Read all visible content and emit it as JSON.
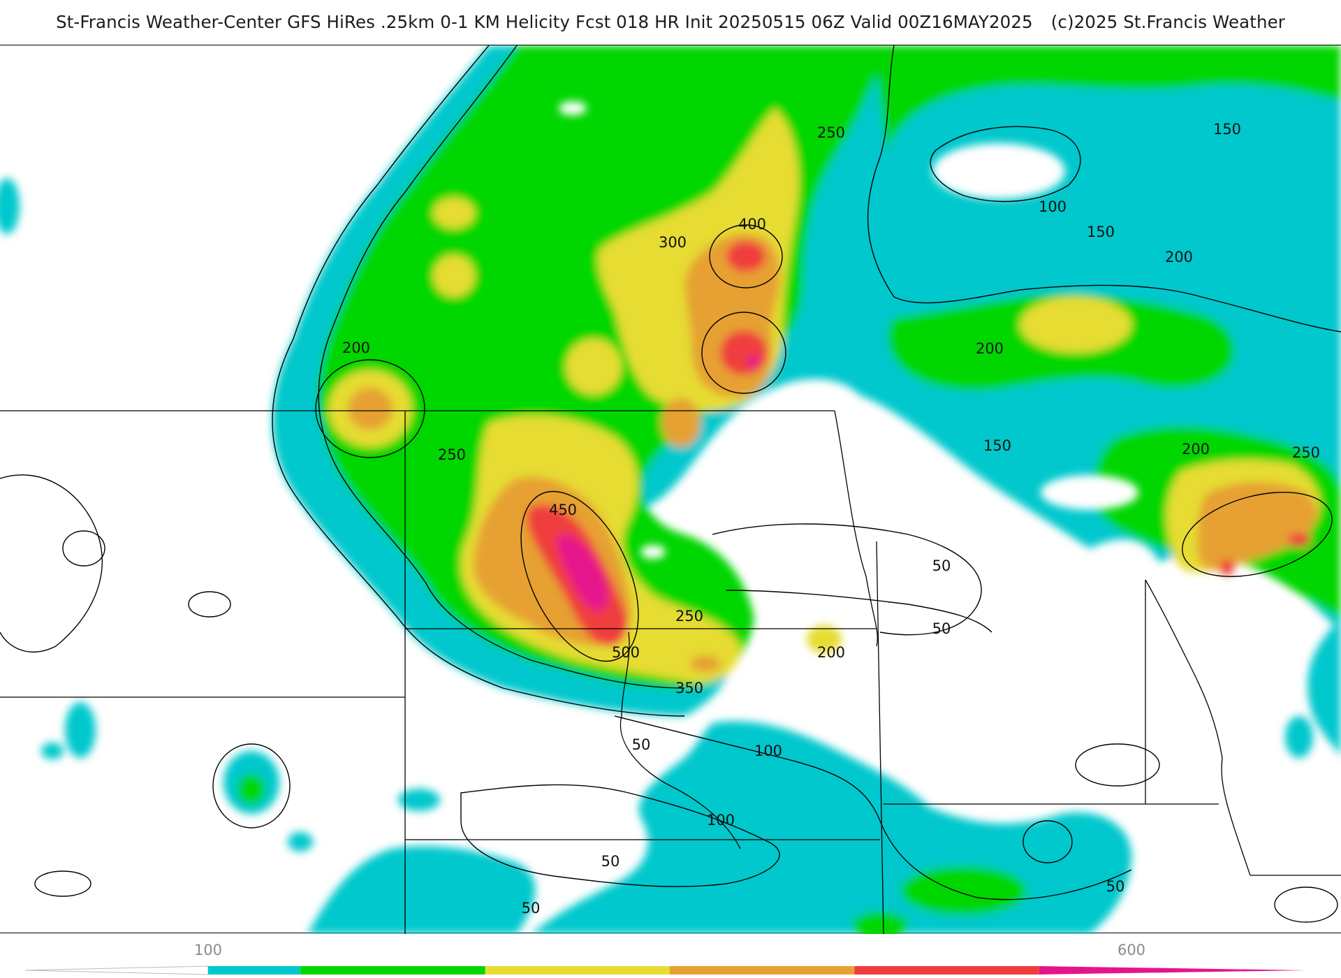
{
  "header": {
    "title": "St-Francis Weather-Center GFS HiRes .25km 0-1 KM Helicity Fcst 018 HR Init 20250515 06Z  Valid 00Z16MAY2025",
    "copyright": "(c)2025 St.Francis Weather"
  },
  "colors": {
    "c100": "#00c8cc",
    "c150": "#00d600",
    "c250": "#e6dc32",
    "c350": "#e6a132",
    "c450": "#f03c3c",
    "c550": "#e6148c",
    "boundary": "#000000",
    "county": "#c8c8c8"
  },
  "contour_labels": [
    {
      "text": "250"
    },
    {
      "text": "150"
    },
    {
      "text": "100"
    },
    {
      "text": "150"
    },
    {
      "text": "200"
    },
    {
      "text": "400"
    },
    {
      "text": "300"
    },
    {
      "text": "200"
    },
    {
      "text": "200"
    },
    {
      "text": "250"
    },
    {
      "text": "150"
    },
    {
      "text": "200"
    },
    {
      "text": "250"
    },
    {
      "text": "450"
    },
    {
      "text": "50"
    },
    {
      "text": "50"
    },
    {
      "text": "250"
    },
    {
      "text": "500"
    },
    {
      "text": "200"
    },
    {
      "text": "350"
    },
    {
      "text": "50"
    },
    {
      "text": "100"
    },
    {
      "text": "100"
    },
    {
      "text": "50"
    },
    {
      "text": "50"
    },
    {
      "text": "50"
    }
  ],
  "colorbar": {
    "tick_labels": [
      "100",
      "600"
    ],
    "bins": [
      {
        "from": 50,
        "to": 100,
        "color": "#ffffff"
      },
      {
        "from": 100,
        "to": 150,
        "color": "#00c8cc"
      },
      {
        "from": 150,
        "to": 250,
        "color": "#00d600"
      },
      {
        "from": 250,
        "to": 350,
        "color": "#e6dc32"
      },
      {
        "from": 350,
        "to": 450,
        "color": "#e6a132"
      },
      {
        "from": 450,
        "to": 550,
        "color": "#f03c3c"
      },
      {
        "from": 550,
        "to": 600,
        "color": "#e6148c"
      }
    ]
  }
}
